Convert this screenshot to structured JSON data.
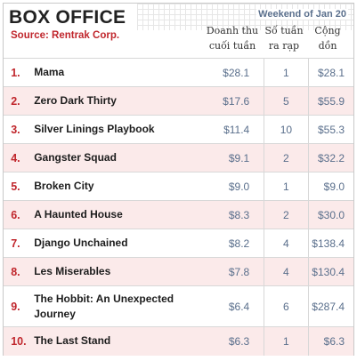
{
  "header": {
    "title": "BOX OFFICE",
    "source": "Source: Rentrak Corp.",
    "weekend": "Weekend of Jan 20"
  },
  "columns": {
    "weekly_line1": "Doanh thu",
    "weekly_line2": "cuối tuần",
    "weeks_line1": "Số tuần",
    "weeks_line2": "ra rạp",
    "total_line1": "Cộng",
    "total_line2": "dồn"
  },
  "rows": [
    {
      "rank": "1.",
      "film": "Mama",
      "weekend": "$28.1",
      "weeks": "1",
      "total": "$28.1"
    },
    {
      "rank": "2.",
      "film": "Zero Dark Thirty",
      "weekend": "$17.6",
      "weeks": "5",
      "total": "$55.9"
    },
    {
      "rank": "3.",
      "film": "Silver Linings Playbook",
      "weekend": "$11.4",
      "weeks": "10",
      "total": "$55.3"
    },
    {
      "rank": "4.",
      "film": "Gangster Squad",
      "weekend": "$9.1",
      "weeks": "2",
      "total": "$32.2"
    },
    {
      "rank": "5.",
      "film": "Broken City",
      "weekend": "$9.0",
      "weeks": "1",
      "total": "$9.0"
    },
    {
      "rank": "6.",
      "film": "A Haunted House",
      "weekend": "$8.3",
      "weeks": "2",
      "total": "$30.0"
    },
    {
      "rank": "7.",
      "film": "Django Unchained",
      "weekend": "$8.2",
      "weeks": "4",
      "total": "$138.4"
    },
    {
      "rank": "8.",
      "film": "Les Miserables",
      "weekend": "$7.8",
      "weeks": "4",
      "total": "$130.4"
    },
    {
      "rank": "9.",
      "film": "The Hobbit: An Unexpected Journey",
      "weekend": "$6.4",
      "weeks": "6",
      "total": "$287.4"
    },
    {
      "rank": "10.",
      "film": "The Last Stand",
      "weekend": "$6.3",
      "weeks": "1",
      "total": "$6.3"
    }
  ],
  "colors": {
    "rank": "#c0262c",
    "value": "#5a6f8c",
    "alt_row": "#fbeaea"
  }
}
